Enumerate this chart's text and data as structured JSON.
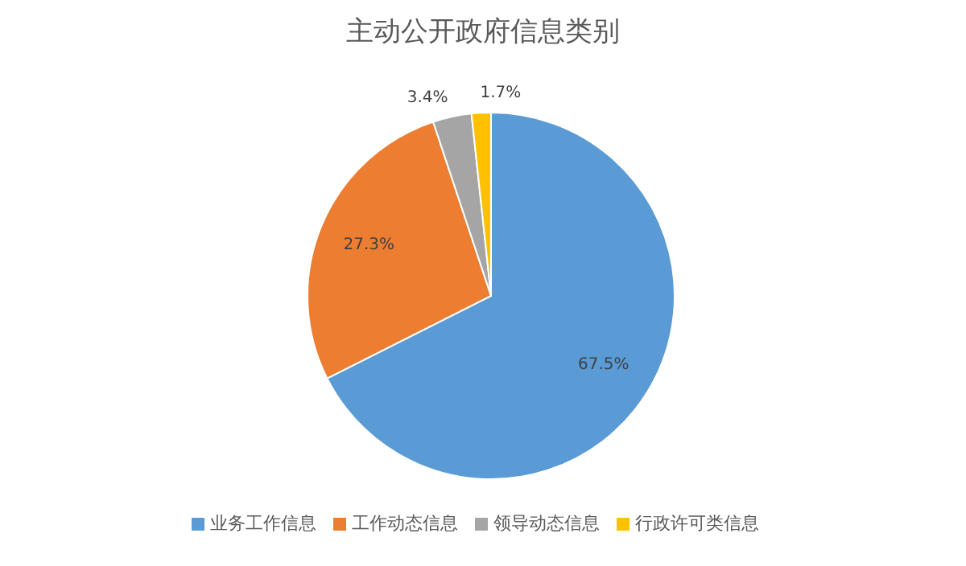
{
  "chart_data": {
    "type": "pie",
    "title": "主动公开政府信息类别",
    "categories": [
      "业务工作信息",
      "工作动态信息",
      "领导动态信息",
      "行政许可类信息"
    ],
    "values": [
      67.5,
      27.3,
      3.4,
      1.7
    ],
    "colors": [
      "#5b9bd5",
      "#ed7d31",
      "#a5a5a5",
      "#ffc000"
    ],
    "value_labels": [
      "67.5%",
      "27.3%",
      "3.4%",
      "1.7%"
    ],
    "legend": "bottom"
  }
}
